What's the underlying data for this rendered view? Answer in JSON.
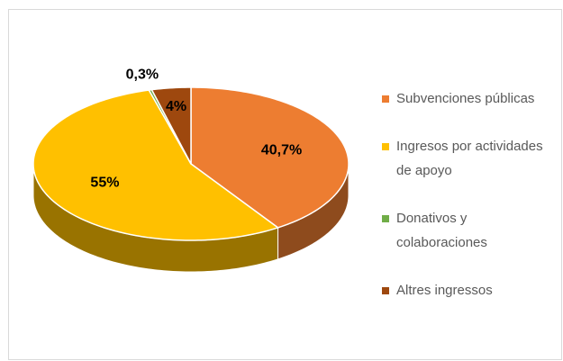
{
  "chart_data": {
    "type": "pie3d",
    "categories": [
      "Subvenciones públicas",
      "Ingresos por actividades de apoyo",
      "Donativos y colaboraciones",
      "Altres ingressos"
    ],
    "values": [
      40.7,
      55,
      0.3,
      4
    ],
    "value_labels": [
      "40,7%",
      "55%",
      "0,3%",
      "4%"
    ],
    "colors": [
      "#ED7D31",
      "#FFC000",
      "#70AD47",
      "#9E480E"
    ],
    "legend": "right"
  }
}
